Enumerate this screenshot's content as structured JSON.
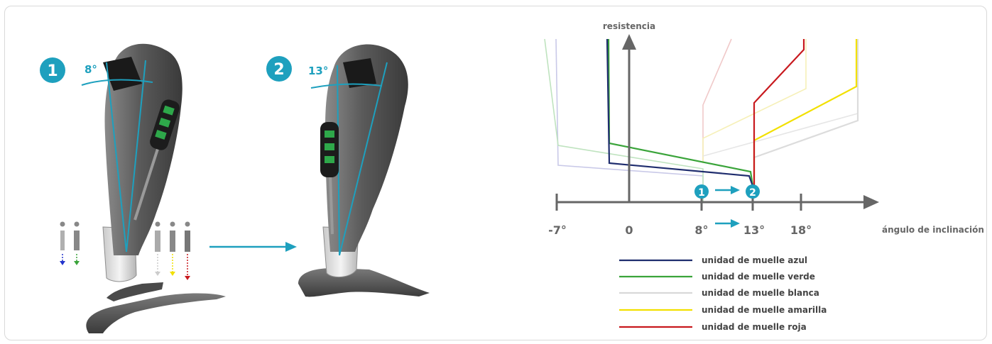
{
  "step1": {
    "number": "1",
    "angle": "8°"
  },
  "step2": {
    "number": "2",
    "angle": "13°"
  },
  "graph": {
    "y_axis_label": "resistencia",
    "x_axis_label": "ángulo de inclinación",
    "ticks": [
      "-7°",
      "0",
      "8°",
      "13°",
      "18°"
    ],
    "marker1": "1",
    "marker2": "2"
  },
  "legend": [
    {
      "label": "unidad de muelle azul",
      "color": "#1f2d6e"
    },
    {
      "label": "unidad de muelle verde",
      "color": "#3aa43a"
    },
    {
      "label": "unidad de muelle blanca",
      "color": "#d8d8d8"
    },
    {
      "label": "unidad de muelle amarilla",
      "color": "#f2e000"
    },
    {
      "label": "unidad de muelle roja",
      "color": "#c8191e"
    }
  ],
  "colors": {
    "accent": "#1ea0be",
    "axis": "#666666"
  }
}
